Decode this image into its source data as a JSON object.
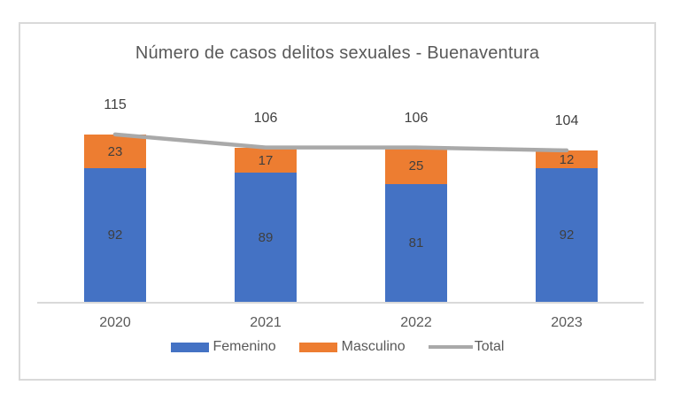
{
  "chart": {
    "title": "Número de casos delitos sexuales - Buenaventura",
    "legend_items": [
      {
        "label": "Femenino",
        "swatch": "rect",
        "color": "#4472c4"
      },
      {
        "label": "Masculino",
        "swatch": "rect",
        "color": "#ed7d31"
      },
      {
        "label": "Total",
        "swatch": "line",
        "color": "#a9a9a9"
      }
    ]
  },
  "chart_data": {
    "type": "bar",
    "stacked": true,
    "title": "Número de casos delitos sexuales - Buenaventura",
    "categories": [
      "2020",
      "2021",
      "2022",
      "2023"
    ],
    "series": [
      {
        "name": "Femenino",
        "type": "bar",
        "color": "#4472c4",
        "values": [
          92,
          89,
          81,
          92
        ]
      },
      {
        "name": "Masculino",
        "type": "bar",
        "color": "#ed7d31",
        "values": [
          23,
          17,
          25,
          12
        ]
      },
      {
        "name": "Total",
        "type": "line",
        "color": "#a9a9a9",
        "values": [
          115,
          106,
          106,
          104
        ]
      }
    ],
    "xlabel": "",
    "ylabel": "",
    "ylim": [
      0,
      140
    ],
    "grid": false,
    "value_axis_visible": false,
    "data_labels": true,
    "legend_position": "bottom"
  },
  "colors": {
    "femenino": "#4472c4",
    "masculino": "#ed7d31",
    "total_line": "#a9a9a9",
    "axis_line": "#d9d9d9",
    "frame_border": "#d9d9d9",
    "title_text": "#595959",
    "label_text": "#3f3f3f",
    "background": "#ffffff"
  }
}
